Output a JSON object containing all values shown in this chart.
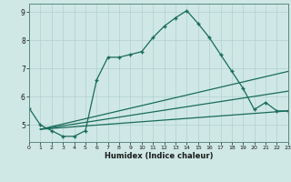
{
  "title": "",
  "xlabel": "Humidex (Indice chaleur)",
  "background_color": "#cfe8e6",
  "grid_color": "#b0d0ce",
  "line_color": "#1a6b5a",
  "xlim": [
    0,
    23
  ],
  "ylim": [
    4.4,
    9.3
  ],
  "yticks": [
    5,
    6,
    7,
    8,
    9
  ],
  "xticks": [
    0,
    1,
    2,
    3,
    4,
    5,
    6,
    7,
    8,
    9,
    10,
    11,
    12,
    13,
    14,
    15,
    16,
    17,
    18,
    19,
    20,
    21,
    22,
    23
  ],
  "series1_x": [
    0,
    1,
    2,
    3,
    4,
    5,
    6,
    7,
    8,
    9,
    10,
    11,
    12,
    13,
    14,
    15,
    16,
    17,
    18,
    19,
    20,
    21,
    22,
    23
  ],
  "series1_y": [
    5.6,
    5.0,
    4.8,
    4.6,
    4.6,
    4.8,
    6.6,
    7.4,
    7.4,
    7.5,
    7.6,
    8.1,
    8.5,
    8.8,
    9.05,
    8.6,
    8.1,
    7.5,
    6.9,
    6.3,
    5.55,
    5.8,
    5.5,
    5.5
  ],
  "series2_x": [
    1,
    23
  ],
  "series2_y": [
    4.85,
    6.9
  ],
  "series3_x": [
    1,
    23
  ],
  "series3_y": [
    4.85,
    6.2
  ],
  "series4_x": [
    1,
    23
  ],
  "series4_y": [
    4.85,
    5.5
  ]
}
